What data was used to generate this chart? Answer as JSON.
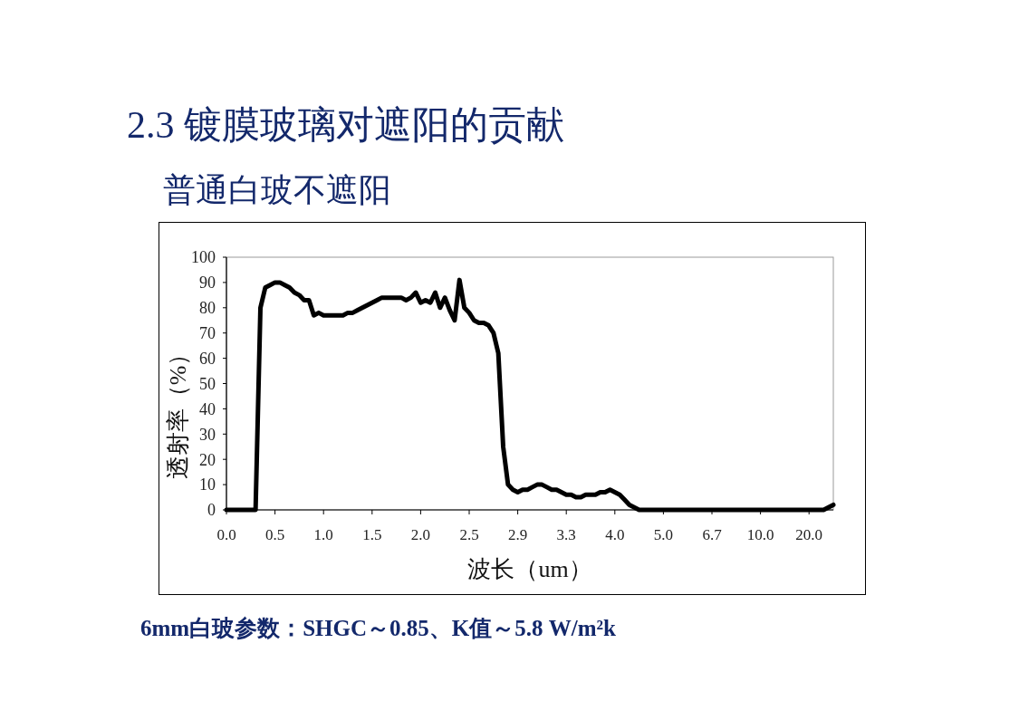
{
  "chart_data": {
    "type": "line",
    "title": "2.3 镀膜玻璃对遮阳的贡献",
    "subtitle": "普通白玻不遮阳",
    "xlabel": "波长（um）",
    "ylabel": "透射率（%）",
    "annotations": [
      "6mm白玻参数：SHGC～0.85、K值～5.8 W/m²k"
    ],
    "categories": [
      "0.0",
      null,
      null,
      null,
      null,
      null,
      null,
      null,
      null,
      null,
      "0.5",
      null,
      null,
      null,
      null,
      null,
      null,
      null,
      null,
      null,
      "1.0",
      null,
      null,
      null,
      null,
      null,
      null,
      null,
      null,
      null,
      "1.5",
      null,
      null,
      null,
      null,
      null,
      null,
      null,
      null,
      null,
      "2.0",
      null,
      null,
      null,
      null,
      null,
      null,
      null,
      null,
      null,
      "2.5",
      null,
      null,
      null,
      null,
      null,
      null,
      null,
      null,
      null,
      "2.9",
      null,
      null,
      null,
      null,
      null,
      null,
      null,
      null,
      null,
      "3.3",
      null,
      null,
      null,
      null,
      null,
      null,
      null,
      null,
      null,
      "4.0",
      null,
      null,
      null,
      null,
      null,
      null,
      null,
      null,
      null,
      "5.0",
      null,
      null,
      null,
      null,
      null,
      null,
      null,
      null,
      null,
      "6.7",
      null,
      null,
      null,
      null,
      null,
      null,
      null,
      null,
      null,
      "10.0",
      null,
      null,
      null,
      null,
      null,
      null,
      null,
      null,
      null,
      "20.0",
      null,
      null,
      null,
      null,
      null
    ],
    "values": [
      0,
      0,
      0,
      0,
      0,
      0,
      0,
      80,
      88,
      89,
      90,
      90,
      89,
      88,
      86,
      85,
      83,
      83,
      77,
      78,
      77,
      77,
      77,
      77,
      77,
      78,
      78,
      79,
      80,
      81,
      82,
      83,
      84,
      84,
      84,
      84,
      84,
      83,
      84,
      86,
      82,
      83,
      82,
      86,
      80,
      84,
      79,
      75,
      91,
      80,
      78,
      75,
      74,
      74,
      73,
      70,
      62,
      25,
      10,
      8,
      7,
      8,
      8,
      9,
      10,
      10,
      9,
      8,
      8,
      7,
      6,
      6,
      5,
      5,
      6,
      6,
      6,
      7,
      7,
      8,
      7,
      6,
      4,
      2,
      1,
      0,
      0,
      0,
      0,
      0,
      0,
      0,
      0,
      0,
      0,
      0,
      0,
      0,
      0,
      0,
      0,
      0,
      0,
      0,
      0,
      0,
      0,
      0,
      0,
      0,
      0,
      0,
      0,
      0,
      0,
      0,
      0,
      0,
      0,
      0,
      0,
      0,
      0,
      0,
      1,
      2
    ],
    "color": "#000000",
    "line_style": "solid",
    "ylim": [
      0,
      100
    ],
    "yticks": [
      0,
      10,
      20,
      30,
      40,
      50,
      60,
      70,
      80,
      90,
      100
    ]
  }
}
